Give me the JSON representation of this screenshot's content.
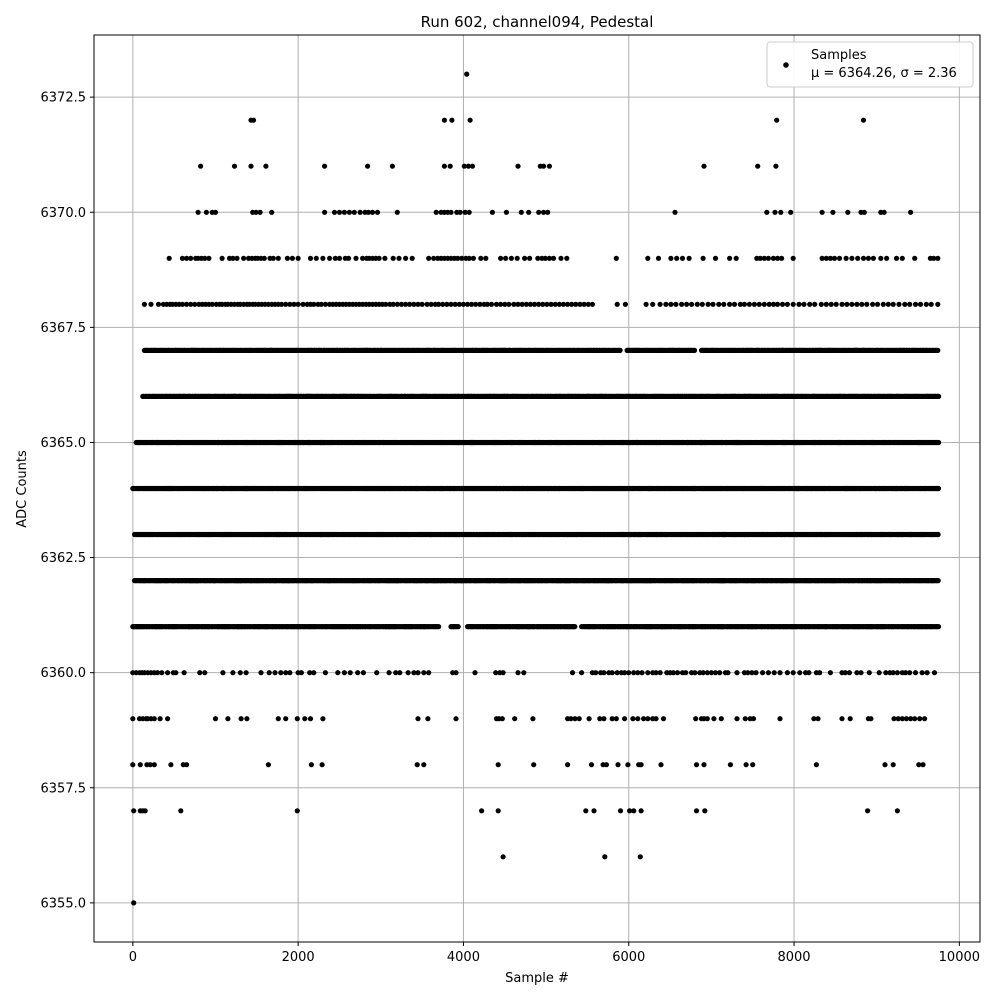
{
  "chart_data": {
    "type": "scatter",
    "title": "Run 602, channel094, Pedestal",
    "xlabel": "Sample #",
    "ylabel": "ADC Counts",
    "xlim": [
      -470,
      10250
    ],
    "ylim": [
      6354.15,
      6373.85
    ],
    "xticks": [
      0,
      2000,
      4000,
      6000,
      8000,
      10000
    ],
    "yticks": [
      6355.0,
      6357.5,
      6360.0,
      6362.5,
      6365.0,
      6367.5,
      6370.0,
      6372.5
    ],
    "xtick_labels": [
      "0",
      "2000",
      "4000",
      "6000",
      "8000",
      "10000"
    ],
    "ytick_labels": [
      "6355.0",
      "6357.5",
      "6360.0",
      "6362.5",
      "6365.0",
      "6367.5",
      "6370.0",
      "6372.5"
    ],
    "grid": true,
    "legend_position": "top-right",
    "marker_color": "#000000",
    "series": [
      {
        "name": "Samples",
        "stats": "μ = 6364.26, σ = 2.36",
        "n_samples": 9750,
        "levels": [
          {
            "y": 6355,
            "x": [
              10
            ]
          },
          {
            "y": 6356,
            "x": [
              4480,
              5710,
              6140
            ]
          },
          {
            "y": 6357,
            "x": [
              10,
              90,
              120,
              150,
              580,
              1990,
              4220,
              4420,
              5480,
              5580,
              5900,
              6010,
              6060,
              6150,
              6820,
              6920,
              8890,
              9250
            ]
          },
          {
            "y": 6358,
            "x": [
              0,
              90,
              170,
              210,
              260,
              460,
              610,
              650,
              1640,
              2160,
              2290,
              3440,
              3520,
              4420,
              4850,
              5260,
              5550,
              5690,
              5730,
              5870,
              5990,
              6120,
              6150,
              6390,
              6820,
              6910,
              7230,
              7420,
              7500,
              8270,
              9100,
              9200,
              9510,
              9560
            ]
          },
          {
            "y": 6359,
            "x": [
              0,
              80,
              120,
              160,
              180,
              220,
              260,
              330,
              420,
              1000,
              1150,
              1310,
              1380,
              1760,
              1850,
              1990,
              2080,
              2150,
              2300,
              3450,
              3570,
              3910,
              4400,
              4430,
              4470,
              4620,
              4840,
              5260,
              5300,
              5350,
              5400,
              5520,
              5650,
              5700,
              5800,
              5850,
              5950,
              6050,
              6110,
              6180,
              6230,
              6290,
              6330,
              6420,
              6810,
              6880,
              6910,
              6950,
              7030,
              7120,
              7310,
              7410,
              7470,
              7510,
              7830,
              8240,
              8290,
              8580,
              8680,
              8900,
              8930,
              9210,
              9260,
              9310,
              9360,
              9410,
              9460,
              9520,
              9580
            ]
          },
          {
            "y": 6360,
            "x": [
              0,
              40,
              80,
              110,
              140,
              180,
              220,
              260,
              300,
              350,
              420,
              490,
              520,
              620,
              810,
              870,
              1090,
              1210,
              1300,
              1370,
              1550,
              1650,
              1720,
              1790,
              1850,
              1900,
              2000,
              2040,
              2140,
              2190,
              2330,
              2480,
              2560,
              2630,
              2720,
              2790,
              2950,
              3100,
              3180,
              3230,
              3330,
              3400,
              3450,
              3520,
              3580,
              3870,
              3910,
              4140,
              4390,
              4440,
              4480,
              4660,
              4730,
              5320,
              5430,
              5560,
              5600,
              5660,
              5700,
              5760,
              5800,
              5860,
              5910,
              5950,
              6000,
              6060,
              6110,
              6160,
              6230,
              6290,
              6330,
              6380,
              6460,
              6500,
              6540,
              6590,
              6650,
              6690,
              6760,
              6800,
              6860,
              6900,
              6950,
              7000,
              7050,
              7100,
              7170,
              7200,
              7310,
              7400,
              7440,
              7490,
              7540,
              7620,
              7690,
              7760,
              7830,
              7920,
              7990,
              8070,
              8140,
              8180,
              8270,
              8310,
              8440,
              8580,
              8620,
              8670,
              8760,
              8810,
              8910,
              9030,
              9110,
              9160,
              9200,
              9250,
              9310,
              9350,
              9400,
              9470,
              9550,
              9610,
              9700
            ]
          },
          {
            "y": 6361,
            "x_ranges": [
              [
                0,
                3700
              ],
              [
                3850,
                3950
              ],
              [
                4050,
                5350
              ],
              [
                5430,
                9750
              ]
            ],
            "step": 14
          },
          {
            "y": 6362,
            "x_ranges": [
              [
                20,
                9750
              ]
            ],
            "step": 12
          },
          {
            "y": 6363,
            "x_ranges": [
              [
                20,
                9750
              ]
            ],
            "step": 11
          },
          {
            "y": 6364,
            "x_ranges": [
              [
                0,
                9750
              ]
            ],
            "step": 10
          },
          {
            "y": 6365,
            "x_ranges": [
              [
                40,
                9750
              ]
            ],
            "step": 11
          },
          {
            "y": 6366,
            "x_ranges": [
              [
                120,
                9750
              ]
            ],
            "step": 12
          },
          {
            "y": 6367,
            "x_ranges": [
              [
                140,
                5900
              ],
              [
                5980,
                6800
              ],
              [
                6880,
                9750
              ]
            ],
            "step": 13
          },
          {
            "y": 6368,
            "x": [
              140,
              220,
              310,
              370,
              410,
              450,
              480,
              520,
              560,
              600,
              650,
              700,
              750,
              800,
              840,
              880,
              920,
              960,
              1010,
              1050,
              1080,
              1120,
              1150,
              1190,
              1230,
              1270,
              1300,
              1340,
              1380,
              1410,
              1450,
              1480,
              1520,
              1560,
              1600,
              1640,
              1680,
              1720,
              1760,
              1800,
              1850,
              1900,
              1950,
              2000,
              2060,
              2110,
              2150,
              2190,
              2240,
              2280,
              2330,
              2380,
              2420,
              2460,
              2500,
              2540,
              2580,
              2620,
              2660,
              2700,
              2740,
              2780,
              2820,
              2860,
              2900,
              2940,
              2980,
              3020,
              3060,
              3110,
              3150,
              3200,
              3250,
              3300,
              3350,
              3400,
              3450,
              3500,
              3560,
              3610,
              3660,
              3700,
              3750,
              3800,
              3850,
              3900,
              3950,
              4000,
              4050,
              4100,
              4150,
              4200,
              4250,
              4290,
              4340,
              4400,
              4450,
              4500,
              4550,
              4610,
              4660,
              4710,
              4760,
              4810,
              4860,
              4910,
              4960,
              5010,
              5060,
              5110,
              5160,
              5210,
              5260,
              5310,
              5360,
              5410,
              5460,
              5510,
              5560,
              5860,
              5960,
              6210,
              6290,
              6380,
              6450,
              6510,
              6570,
              6640,
              6700,
              6760,
              6830,
              6890,
              6960,
              7020,
              7090,
              7150,
              7220,
              7280,
              7350,
              7400,
              7460,
              7520,
              7580,
              7640,
              7700,
              7750,
              7800,
              7860,
              7920,
              7990,
              8060,
              8120,
              8190,
              8250,
              8330,
              8390,
              8450,
              8510,
              8580,
              8640,
              8700,
              8760,
              8820,
              8880,
              8950,
              9010,
              9080,
              9140,
              9200,
              9270,
              9340,
              9400,
              9470,
              9530,
              9600,
              9660,
              9740
            ]
          },
          {
            "y": 6369,
            "x": [
              440,
              600,
              650,
              700,
              760,
              790,
              830,
              870,
              920,
              1080,
              1170,
              1210,
              1260,
              1340,
              1400,
              1440,
              1480,
              1510,
              1550,
              1590,
              1660,
              1700,
              1760,
              1870,
              1930,
              2000,
              2150,
              2220,
              2300,
              2380,
              2450,
              2500,
              2570,
              2610,
              2700,
              2780,
              2830,
              2860,
              2900,
              2940,
              2980,
              3050,
              3150,
              3220,
              3300,
              3380,
              3580,
              3640,
              3690,
              3730,
              3770,
              3810,
              3850,
              3890,
              3930,
              3980,
              4030,
              4070,
              4120,
              4210,
              4270,
              4450,
              4510,
              4580,
              4650,
              4740,
              4800,
              4900,
              4950,
              4990,
              5040,
              5090,
              5180,
              5250,
              5850,
              6230,
              6360,
              6510,
              6580,
              6650,
              6730,
              6900,
              7050,
              7220,
              7300,
              7550,
              7590,
              7640,
              7690,
              7750,
              7800,
              7850,
              7990,
              8340,
              8390,
              8440,
              8490,
              8550,
              8630,
              8700,
              8770,
              8840,
              8900,
              8960,
              9050,
              9120,
              9240,
              9310,
              9460,
              9650,
              9690,
              9740
            ]
          },
          {
            "y": 6370,
            "x": [
              790,
              890,
              960,
              1000,
              1450,
              1490,
              1540,
              1680,
              2320,
              2440,
              2500,
              2560,
              2620,
              2680,
              2750,
              2810,
              2850,
              2900,
              2960,
              3200,
              3670,
              3730,
              3770,
              3810,
              3850,
              3920,
              3960,
              4020,
              4070,
              4350,
              4520,
              4700,
              4790,
              4910,
              4970,
              5020,
              6560,
              7670,
              7770,
              7840,
              7960,
              8340,
              8470,
              8650,
              8810,
              8850,
              9050,
              9090,
              9410
            ]
          },
          {
            "y": 6371,
            "x": [
              820,
              1230,
              1430,
              1610,
              2320,
              2840,
              3140,
              3770,
              3840,
              4010,
              4060,
              4110,
              4660,
              4930,
              4970,
              5040,
              6910,
              7560,
              7780
            ]
          },
          {
            "y": 6372,
            "x": [
              1430,
              1460,
              3770,
              3860,
              4080,
              7790,
              8840
            ]
          },
          {
            "y": 6373,
            "x": [
              4040
            ]
          }
        ]
      }
    ]
  }
}
